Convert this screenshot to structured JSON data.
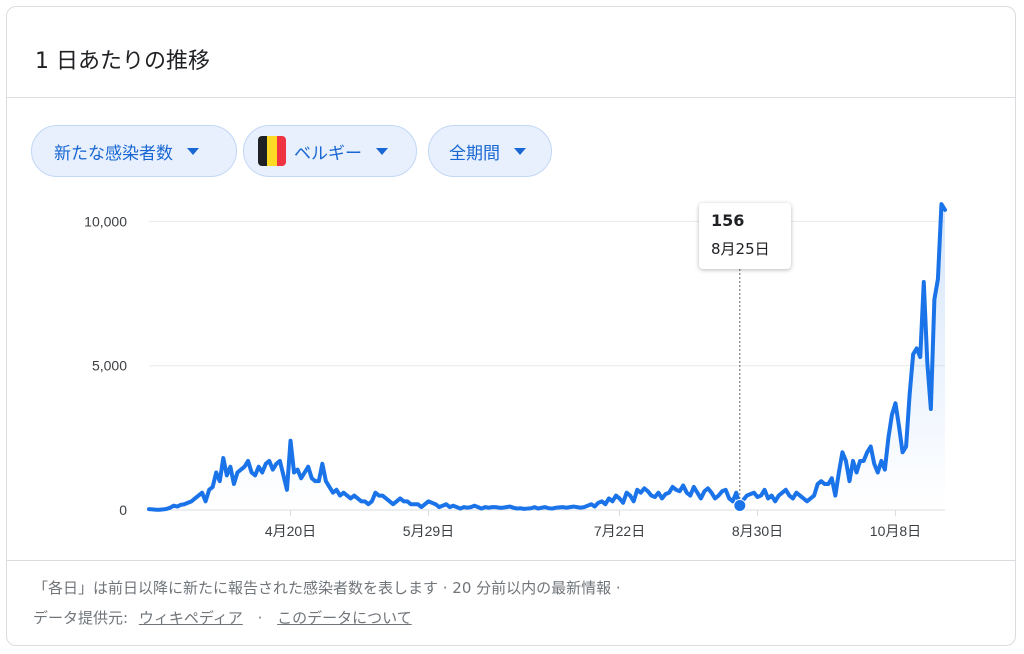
{
  "card": {
    "title": "1 日あたりの推移"
  },
  "filters": {
    "metric": "新たな感染者数",
    "country": "ベルギー",
    "period": "全期間"
  },
  "flag_colors": [
    "#202124",
    "#fdda24",
    "#ef3340"
  ],
  "icons": {
    "dropdown": "chevron-down-icon",
    "country_flag": "belgium-flag-icon"
  },
  "colors": {
    "line": "#1a73e8",
    "grid": "#e8eaed",
    "accent": "#1967d2"
  },
  "tooltip": {
    "value": "156",
    "date": "8月25日"
  },
  "chart_data": {
    "type": "area",
    "title": "",
    "xlabel": "",
    "ylabel": "",
    "ylim": [
      0,
      10500
    ],
    "yticks": [
      "0",
      "5,000",
      "10,000"
    ],
    "y_tick_values": [
      0,
      5000,
      10000
    ],
    "xticks": [
      "4月20日",
      "5月29日",
      "7月22日",
      "8月30日",
      "10月8日"
    ],
    "x_tick_index": [
      40,
      79,
      133,
      172,
      211
    ],
    "grid": true,
    "legend": "none",
    "highlight_index": 167,
    "series": [
      {
        "values": [
          30,
          20,
          10,
          10,
          20,
          40,
          80,
          150,
          120,
          180,
          200,
          250,
          300,
          400,
          500,
          600,
          300,
          700,
          800,
          1300,
          1000,
          1800,
          1200,
          1500,
          900,
          1300,
          1400,
          1500,
          1700,
          1300,
          1200,
          1500,
          1300,
          1600,
          1700,
          1400,
          1600,
          1700,
          1200,
          700,
          2400,
          1300,
          1400,
          1100,
          1300,
          1500,
          1100,
          1000,
          1000,
          1600,
          1000,
          800,
          600,
          700,
          500,
          600,
          500,
          400,
          500,
          400,
          300,
          300,
          200,
          300,
          600,
          500,
          500,
          400,
          300,
          200,
          300,
          400,
          300,
          300,
          200,
          200,
          200,
          100,
          200,
          300,
          250,
          200,
          100,
          150,
          200,
          100,
          150,
          100,
          50,
          100,
          80,
          100,
          150,
          100,
          50,
          100,
          80,
          100,
          100,
          80,
          80,
          100,
          120,
          80,
          50,
          60,
          40,
          50,
          60,
          100,
          50,
          80,
          100,
          60,
          50,
          80,
          90,
          100,
          80,
          100,
          120,
          100,
          80,
          100,
          150,
          200,
          120,
          250,
          300,
          200,
          400,
          300,
          500,
          400,
          250,
          600,
          500,
          300,
          700,
          600,
          750,
          650,
          500,
          450,
          600,
          400,
          550,
          600,
          800,
          700,
          650,
          850,
          600,
          500,
          800,
          600,
          400,
          650,
          750,
          600,
          400,
          500,
          650,
          700,
          400,
          300,
          600,
          156,
          350,
          500,
          550,
          600,
          450,
          500,
          700,
          400,
          500,
          300,
          500,
          600,
          700,
          500,
          400,
          600,
          500,
          400,
          300,
          400,
          500,
          900,
          1000,
          900,
          900,
          1100,
          500,
          1300,
          2000,
          1700,
          1000,
          1700,
          1300,
          1700,
          1700,
          2000,
          2200,
          1600,
          1300,
          1700,
          1400,
          2500,
          3300,
          3700,
          2900,
          2000,
          2200,
          4000,
          5400,
          5600,
          5300,
          7900,
          5100,
          3500,
          7300,
          8000,
          10600,
          10400
        ]
      }
    ]
  },
  "footer": {
    "note": "「各日」は前日以降に新たに報告された感染者数を表します · 20 分前以内の最新情報 ·",
    "source_label": "データ提供元:",
    "source_link": "ウィキペディア",
    "separator": "·",
    "about_link": "このデータについて"
  }
}
